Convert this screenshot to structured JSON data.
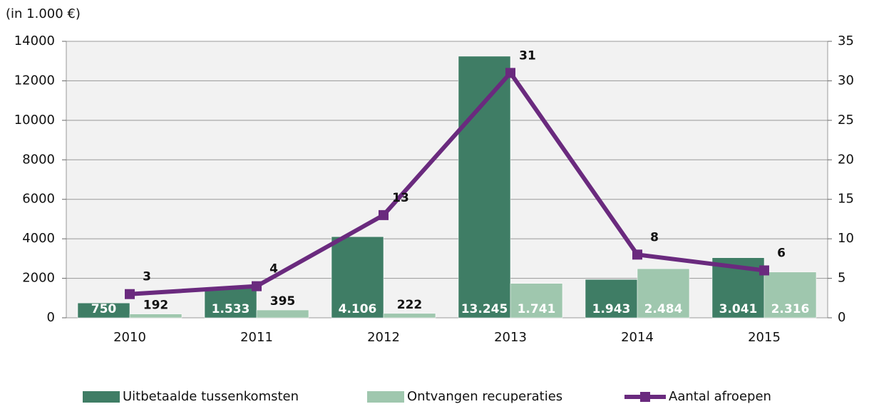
{
  "chart_data": {
    "type": "bar",
    "subtitle": "(in 1.000 €)",
    "categories": [
      "2010",
      "2011",
      "2012",
      "2013",
      "2014",
      "2015"
    ],
    "series": [
      {
        "name": "Uitbetaalde tussenkomsten",
        "color": "#3f7d65",
        "values": [
          750,
          1533,
          4106,
          13245,
          1943,
          3041
        ],
        "value_labels": [
          "750",
          "1.533",
          "4.106",
          "13.245",
          "1.943",
          "3.041"
        ]
      },
      {
        "name": "Ontvangen recuperaties",
        "color": "#9fc7ae",
        "values": [
          192,
          395,
          222,
          1741,
          2484,
          2316
        ],
        "value_labels": [
          "192",
          "395",
          "222",
          "1.741",
          "2.484",
          "2.316"
        ]
      },
      {
        "name": "Aantal afroepen",
        "type": "line",
        "axis": "y2",
        "color": "#6a2a7e",
        "values": [
          3,
          4,
          13,
          31,
          8,
          6
        ]
      }
    ],
    "ylim": [
      0,
      14000
    ],
    "yticks": [
      0,
      2000,
      4000,
      6000,
      8000,
      10000,
      12000,
      14000
    ],
    "y2lim": [
      0,
      35
    ],
    "y2ticks": [
      0,
      5,
      10,
      15,
      20,
      25,
      30,
      35
    ],
    "legend": "bottom"
  }
}
